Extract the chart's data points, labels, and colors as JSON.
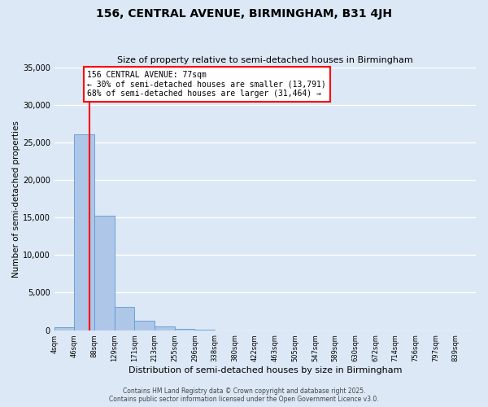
{
  "title": "156, CENTRAL AVENUE, BIRMINGHAM, B31 4JH",
  "subtitle": "Size of property relative to semi-detached houses in Birmingham",
  "xlabel": "Distribution of semi-detached houses by size in Birmingham",
  "ylabel": "Number of semi-detached properties",
  "bin_labels": [
    "4sqm",
    "46sqm",
    "88sqm",
    "129sqm",
    "171sqm",
    "213sqm",
    "255sqm",
    "296sqm",
    "338sqm",
    "380sqm",
    "422sqm",
    "463sqm",
    "505sqm",
    "547sqm",
    "589sqm",
    "630sqm",
    "672sqm",
    "714sqm",
    "756sqm",
    "797sqm",
    "839sqm"
  ],
  "bar_values": [
    400,
    26100,
    15200,
    3100,
    1250,
    450,
    180,
    70,
    0,
    0,
    0,
    0,
    0,
    0,
    0,
    0,
    0,
    0,
    0,
    0,
    0
  ],
  "bar_color": "#aec6e8",
  "bar_edge_color": "#5b9bd5",
  "vline_index": 1.5,
  "vline_color": "red",
  "annotation_title": "156 CENTRAL AVENUE: 77sqm",
  "annotation_line1": "← 30% of semi-detached houses are smaller (13,791)",
  "annotation_line2": "68% of semi-detached houses are larger (31,464) →",
  "annotation_box_color": "white",
  "annotation_box_edge_color": "red",
  "ylim": [
    0,
    35000
  ],
  "yticks": [
    0,
    5000,
    10000,
    15000,
    20000,
    25000,
    30000,
    35000
  ],
  "background_color": "#dce8f5",
  "grid_color": "white",
  "footer_line1": "Contains HM Land Registry data © Crown copyright and database right 2025.",
  "footer_line2": "Contains public sector information licensed under the Open Government Licence v3.0."
}
